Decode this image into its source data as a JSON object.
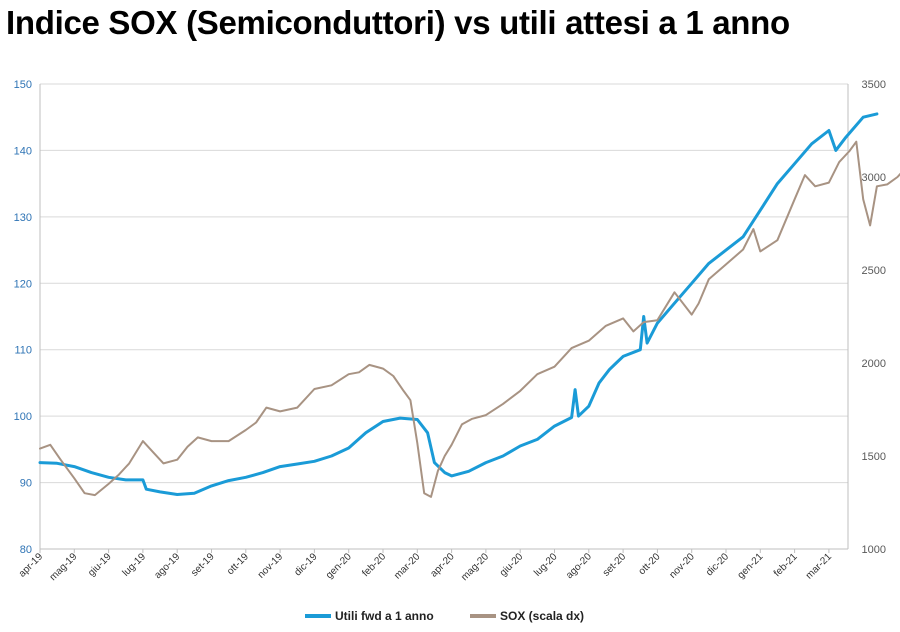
{
  "chart_data": {
    "type": "line",
    "title": "Indice SOX (Semiconduttori) vs utili attesi a 1 anno",
    "x_ticks": [
      "apr-19",
      "mag-19",
      "giu-19",
      "lug-19",
      "ago-19",
      "set-19",
      "ott-19",
      "nov-19",
      "dic-19",
      "gen-20",
      "feb-20",
      "mar-20",
      "apr-20",
      "mag-20",
      "giu-20",
      "lug-20",
      "ago-20",
      "set-20",
      "ott-20",
      "nov-20",
      "dic-20",
      "gen-21",
      "feb-21",
      "mar-21"
    ],
    "left_axis": {
      "ylim": [
        80,
        150
      ],
      "ticks": [
        80,
        90,
        100,
        110,
        120,
        130,
        140,
        150
      ]
    },
    "right_axis": {
      "ylim": [
        1000,
        3500
      ],
      "ticks": [
        1000,
        1500,
        2000,
        2500,
        3000,
        3500
      ]
    },
    "grid": "horizontal",
    "series": [
      {
        "name": "Utili fwd a 1 anno",
        "axis": "left",
        "color": "#1a9bd7",
        "points": [
          [
            0,
            93
          ],
          [
            0.5,
            92.9
          ],
          [
            1,
            92.4
          ],
          [
            1.5,
            91.5
          ],
          [
            2,
            90.8
          ],
          [
            2.5,
            90.4
          ],
          [
            3,
            90.4
          ],
          [
            3.1,
            89
          ],
          [
            3.5,
            88.6
          ],
          [
            4,
            88.2
          ],
          [
            4.5,
            88.4
          ],
          [
            5,
            89.5
          ],
          [
            5.5,
            90.3
          ],
          [
            6,
            90.8
          ],
          [
            6.5,
            91.5
          ],
          [
            7,
            92.4
          ],
          [
            7.5,
            92.8
          ],
          [
            8,
            93.2
          ],
          [
            8.5,
            94
          ],
          [
            9,
            95.2
          ],
          [
            9.5,
            97.5
          ],
          [
            10,
            99.2
          ],
          [
            10.5,
            99.7
          ],
          [
            11,
            99.5
          ],
          [
            11.3,
            97.5
          ],
          [
            11.5,
            93
          ],
          [
            11.8,
            91.5
          ],
          [
            12,
            91
          ],
          [
            12.5,
            91.7
          ],
          [
            13,
            93
          ],
          [
            13.5,
            94
          ],
          [
            14,
            95.5
          ],
          [
            14.5,
            96.5
          ],
          [
            15,
            98.5
          ],
          [
            15.5,
            99.8
          ],
          [
            15.6,
            104
          ],
          [
            15.7,
            100
          ],
          [
            16,
            101.5
          ],
          [
            16.3,
            105
          ],
          [
            16.6,
            107
          ],
          [
            16.8,
            108
          ],
          [
            17,
            109
          ],
          [
            17.5,
            110
          ],
          [
            17.6,
            115
          ],
          [
            17.7,
            111
          ],
          [
            18,
            114
          ],
          [
            18.5,
            117
          ],
          [
            19,
            120
          ],
          [
            19.5,
            123
          ],
          [
            20,
            125
          ],
          [
            20.5,
            127
          ],
          [
            21,
            131
          ],
          [
            21.5,
            135
          ],
          [
            22,
            138
          ],
          [
            22.5,
            141
          ],
          [
            23,
            143
          ],
          [
            23.2,
            140
          ],
          [
            23.5,
            142
          ],
          [
            24,
            145
          ],
          [
            24.4,
            145.5
          ]
        ]
      },
      {
        "name": "SOX (scala dx)",
        "axis": "right",
        "color": "#a89383",
        "points": [
          [
            0,
            1540
          ],
          [
            0.3,
            1560
          ],
          [
            0.6,
            1480
          ],
          [
            1,
            1380
          ],
          [
            1.3,
            1300
          ],
          [
            1.6,
            1290
          ],
          [
            2,
            1350
          ],
          [
            2.3,
            1400
          ],
          [
            2.6,
            1460
          ],
          [
            3,
            1580
          ],
          [
            3.3,
            1520
          ],
          [
            3.6,
            1460
          ],
          [
            4,
            1480
          ],
          [
            4.3,
            1550
          ],
          [
            4.6,
            1600
          ],
          [
            5,
            1580
          ],
          [
            5.5,
            1580
          ],
          [
            6,
            1640
          ],
          [
            6.3,
            1680
          ],
          [
            6.6,
            1760
          ],
          [
            7,
            1740
          ],
          [
            7.5,
            1760
          ],
          [
            8,
            1860
          ],
          [
            8.5,
            1880
          ],
          [
            9,
            1940
          ],
          [
            9.3,
            1950
          ],
          [
            9.6,
            1990
          ],
          [
            10,
            1970
          ],
          [
            10.3,
            1930
          ],
          [
            10.6,
            1850
          ],
          [
            10.8,
            1800
          ],
          [
            11,
            1570
          ],
          [
            11.2,
            1300
          ],
          [
            11.4,
            1280
          ],
          [
            11.6,
            1420
          ],
          [
            11.8,
            1500
          ],
          [
            12,
            1560
          ],
          [
            12.3,
            1670
          ],
          [
            12.6,
            1700
          ],
          [
            13,
            1720
          ],
          [
            13.5,
            1780
          ],
          [
            14,
            1850
          ],
          [
            14.5,
            1940
          ],
          [
            15,
            1980
          ],
          [
            15.5,
            2080
          ],
          [
            16,
            2120
          ],
          [
            16.5,
            2200
          ],
          [
            17,
            2240
          ],
          [
            17.3,
            2170
          ],
          [
            17.6,
            2220
          ],
          [
            18,
            2230
          ],
          [
            18.5,
            2380
          ],
          [
            19,
            2260
          ],
          [
            19.2,
            2320
          ],
          [
            19.5,
            2450
          ],
          [
            20,
            2530
          ],
          [
            20.5,
            2610
          ],
          [
            20.8,
            2720
          ],
          [
            21,
            2600
          ],
          [
            21.5,
            2660
          ],
          [
            22,
            2880
          ],
          [
            22.3,
            3010
          ],
          [
            22.6,
            2950
          ],
          [
            23,
            2970
          ],
          [
            23.3,
            3080
          ],
          [
            23.6,
            3140
          ],
          [
            23.8,
            3190
          ],
          [
            24,
            2880
          ],
          [
            24.2,
            2740
          ],
          [
            24.4,
            2950
          ],
          [
            24.7,
            2960
          ],
          [
            25,
            3000
          ],
          [
            25.3,
            3060
          ],
          [
            25.6,
            3250
          ],
          [
            25.9,
            3180
          ],
          [
            26.1,
            3290
          ]
        ]
      }
    ],
    "legend": {
      "position": "bottom",
      "labels": [
        "Utili fwd a 1 anno",
        "SOX (scala dx)"
      ]
    }
  }
}
